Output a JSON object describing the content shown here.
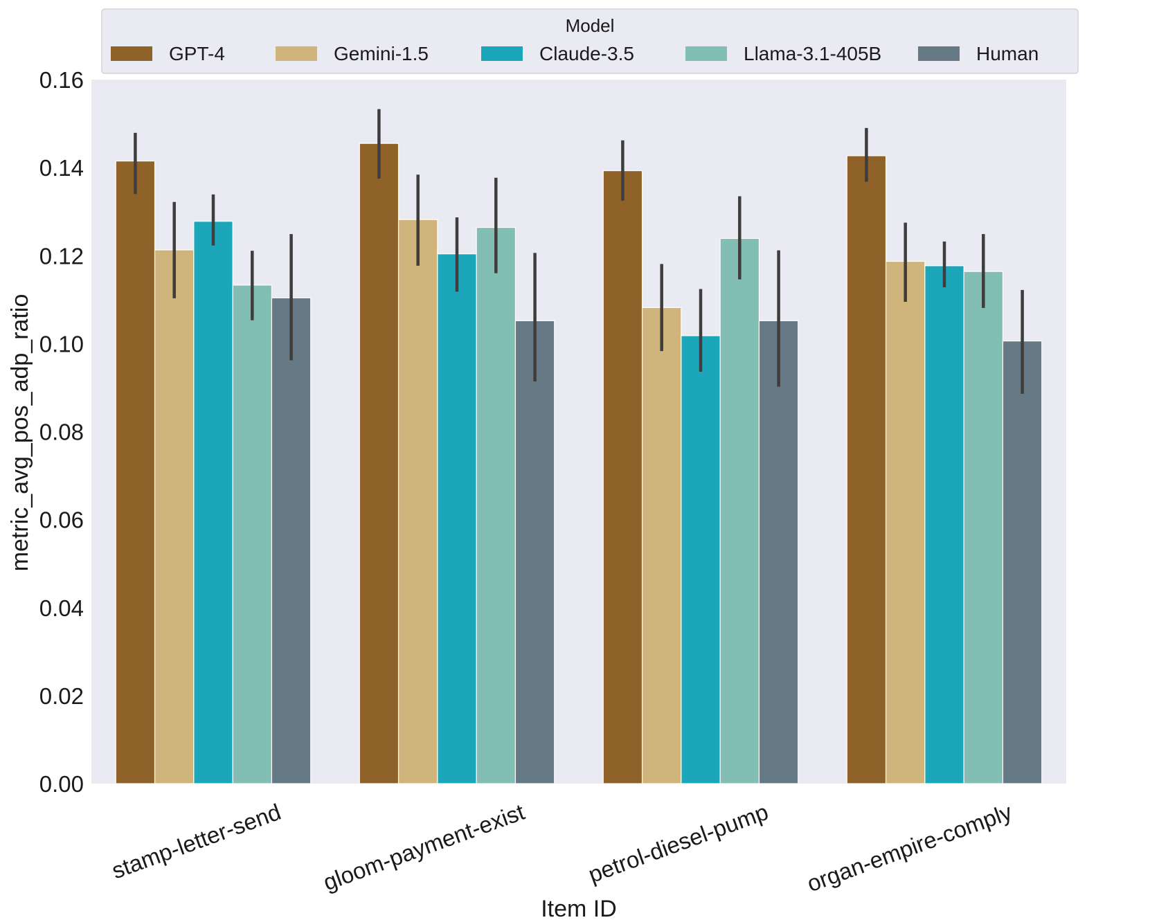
{
  "chart_data": {
    "type": "bar",
    "title": "",
    "xlabel": "Item ID",
    "ylabel": "metric_avg_pos_adp_ratio",
    "ylim": [
      0,
      0.16
    ],
    "yticks": [
      "0.00",
      "0.02",
      "0.04",
      "0.06",
      "0.08",
      "0.10",
      "0.12",
      "0.14",
      "0.16"
    ],
    "grid": false,
    "categories": [
      "stamp-letter-send",
      "gloom-payment-exist",
      "petrol-diesel-pump",
      "organ-empire-comply"
    ],
    "legend": {
      "title": "Model",
      "placement": "top-center"
    },
    "series": [
      {
        "name": "GPT-4",
        "color": "#8e6229",
        "values": [
          0.1415,
          0.1455,
          0.1393,
          0.1427
        ],
        "err_low": [
          0.134,
          0.1375,
          0.1325,
          0.1368
        ],
        "err_high": [
          0.1479,
          0.1533,
          0.1462,
          0.149
        ]
      },
      {
        "name": "Gemini-1.5",
        "color": "#cfb47c",
        "values": [
          0.1213,
          0.1282,
          0.1082,
          0.1187
        ],
        "err_low": [
          0.1103,
          0.1177,
          0.0983,
          0.1095
        ],
        "err_high": [
          0.1322,
          0.1384,
          0.1181,
          0.1275
        ]
      },
      {
        "name": "Claude-3.5",
        "color": "#1ca6ba",
        "values": [
          0.1278,
          0.1204,
          0.1018,
          0.1177
        ],
        "err_low": [
          0.1223,
          0.1118,
          0.0936,
          0.1128
        ],
        "err_high": [
          0.1339,
          0.1287,
          0.1124,
          0.1232
        ]
      },
      {
        "name": "Llama-3.1-405B",
        "color": "#82beb4",
        "values": [
          0.1133,
          0.1264,
          0.1239,
          0.1164
        ],
        "err_low": [
          0.1053,
          0.116,
          0.1146,
          0.1081
        ],
        "err_high": [
          0.1211,
          0.1377,
          0.1335,
          0.1249
        ]
      },
      {
        "name": "Human",
        "color": "#657a84",
        "values": [
          0.1104,
          0.1052,
          0.1052,
          0.1006
        ],
        "err_low": [
          0.0962,
          0.0914,
          0.0902,
          0.0886
        ],
        "err_high": [
          0.1249,
          0.1206,
          0.1212,
          0.1122
        ]
      }
    ]
  }
}
